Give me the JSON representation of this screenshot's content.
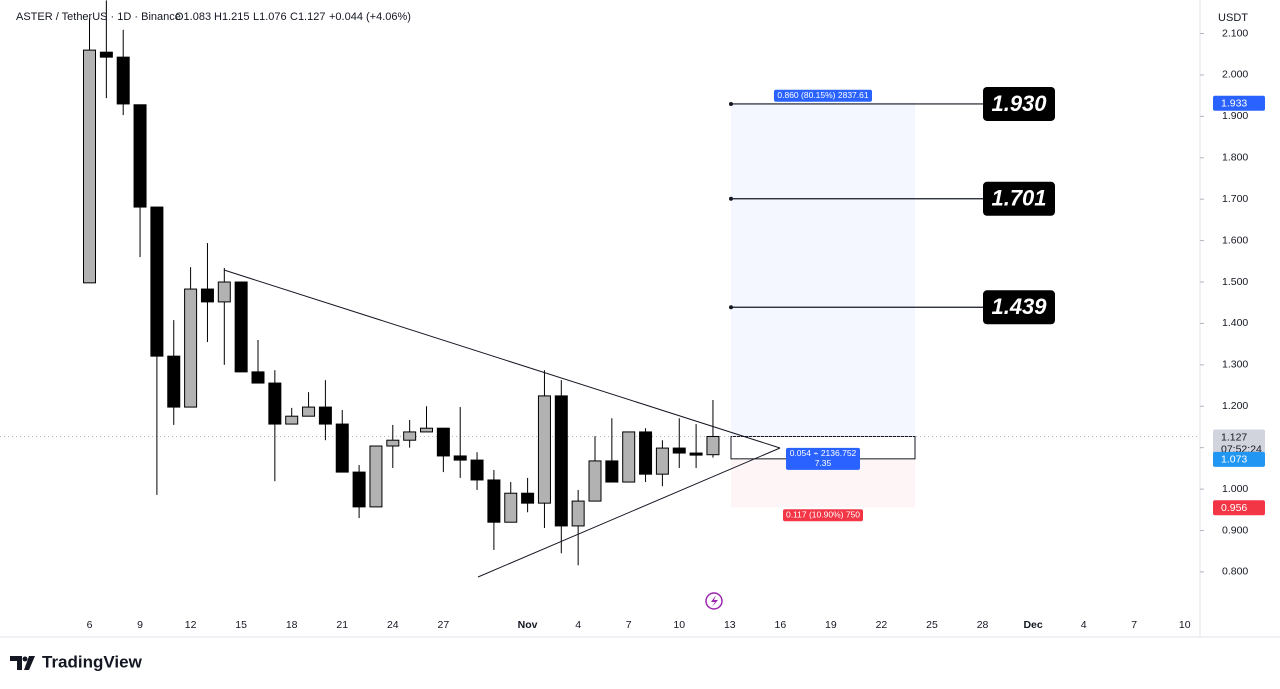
{
  "chart_data": {
    "type": "candlestick",
    "header": {
      "symbol": "ASTER / TetherUS · 1D · Binance",
      "open": "O1.083",
      "high": "H1.215",
      "low": "L1.076",
      "close": "C1.127",
      "change": "+0.044 (+4.06%)"
    },
    "currency": "USDT",
    "brand": "TradingView",
    "categories": [
      "6",
      null,
      null,
      "9",
      null,
      null,
      "12",
      null,
      null,
      "15",
      null,
      null,
      "18",
      null,
      null,
      "21",
      null,
      null,
      "24",
      null,
      null,
      "27",
      null,
      null,
      null,
      null,
      "Nov",
      null,
      null,
      "4",
      null,
      null,
      "7",
      null,
      null,
      "10",
      null,
      null,
      "13",
      null,
      null,
      "16",
      null,
      null,
      "19",
      null,
      null,
      "22",
      null,
      null,
      "25",
      null,
      null,
      "28",
      null,
      null,
      "Dec",
      null,
      null,
      "4",
      null,
      null,
      "7",
      null,
      null,
      "10"
    ],
    "open": [
      1.498,
      2.055,
      2.043,
      1.928,
      1.681,
      1.321,
      1.198,
      1.483,
      1.452,
      1.5,
      1.283,
      1.256,
      1.157,
      1.176,
      1.198,
      1.157,
      1.041,
      0.957,
      1.104,
      1.118,
      1.138,
      1.147,
      1.08,
      1.07,
      1.022,
      0.92,
      0.99,
      0.966,
      1.225,
      0.911,
      0.971,
      1.068,
      1.017,
      1.138,
      1.036,
      1.099,
      1.087,
      1.083,
      null,
      null,
      null,
      null,
      null,
      null,
      null,
      null,
      null,
      null,
      null,
      null,
      null,
      null,
      null,
      null,
      null,
      null,
      null,
      null,
      null,
      null,
      null,
      null,
      null,
      null,
      null,
      null
    ],
    "close": [
      2.06,
      2.043,
      1.93,
      1.681,
      1.321,
      1.198,
      1.483,
      1.452,
      1.5,
      1.283,
      1.256,
      1.157,
      1.176,
      1.198,
      1.157,
      1.041,
      0.957,
      1.104,
      1.118,
      1.138,
      1.147,
      1.08,
      1.07,
      1.022,
      0.92,
      0.99,
      0.966,
      1.225,
      0.911,
      0.971,
      1.068,
      1.017,
      1.138,
      1.036,
      1.099,
      1.087,
      1.082,
      1.127,
      null,
      null,
      null,
      null,
      null,
      null,
      null,
      null,
      null,
      null,
      null,
      null,
      null,
      null,
      null,
      null,
      null,
      null,
      null,
      null,
      null,
      null,
      null,
      null,
      null,
      null,
      null,
      null
    ],
    "high": [
      2.138,
      2.18,
      2.109,
      1.928,
      1.681,
      1.408,
      1.536,
      1.594,
      1.534,
      1.5,
      1.36,
      1.287,
      1.196,
      1.234,
      1.263,
      1.191,
      1.058,
      1.104,
      1.155,
      1.167,
      1.2,
      1.147,
      1.198,
      1.089,
      1.046,
      1.017,
      1.027,
      1.287,
      1.263,
      0.998,
      1.128,
      1.171,
      1.138,
      1.147,
      1.118,
      1.171,
      1.157,
      1.215,
      null,
      null,
      null,
      null,
      null,
      null,
      null,
      null,
      null,
      null,
      null,
      null,
      null,
      null,
      null,
      null,
      null,
      null,
      null,
      null,
      null,
      null,
      null,
      null,
      null,
      null,
      null,
      null
    ],
    "low": [
      1.498,
      1.944,
      1.903,
      1.56,
      0.986,
      1.155,
      1.198,
      1.355,
      1.3,
      1.283,
      1.256,
      1.019,
      1.157,
      1.176,
      1.118,
      1.041,
      0.93,
      0.957,
      1.051,
      1.1,
      1.138,
      1.041,
      1.027,
      0.998,
      0.853,
      0.92,
      0.944,
      0.906,
      0.845,
      0.816,
      0.971,
      1.017,
      1.017,
      1.017,
      1.007,
      1.051,
      1.051,
      1.076,
      null,
      null,
      null,
      null,
      null,
      null,
      null,
      null,
      null,
      null,
      null,
      null,
      null,
      null,
      null,
      null,
      null,
      null,
      null,
      null,
      null,
      null,
      null,
      null,
      null,
      null,
      null,
      null
    ],
    "up_color": "#b2b2b2",
    "down_color": "#000000",
    "ylim": [
      0.708,
      2.181
    ],
    "yticks": [
      {
        "value": 0.8,
        "label": "0.800"
      },
      {
        "value": 0.9,
        "label": "0.900"
      },
      {
        "value": 1.0,
        "label": "1.000"
      },
      {
        "value": 1.1,
        "label": "1.100"
      },
      {
        "value": 1.2,
        "label": "1.200"
      },
      {
        "value": 1.3,
        "label": "1.300"
      },
      {
        "value": 1.4,
        "label": "1.400"
      },
      {
        "value": 1.5,
        "label": "1.500"
      },
      {
        "value": 1.6,
        "label": "1.600"
      },
      {
        "value": 1.7,
        "label": "1.700"
      },
      {
        "value": 1.8,
        "label": "1.800"
      },
      {
        "value": 1.9,
        "label": "1.900"
      },
      {
        "value": 2.0,
        "label": "2.000"
      },
      {
        "value": 2.1,
        "label": "2.100"
      }
    ],
    "targets": [
      {
        "value": 1.93,
        "label": "1.930"
      },
      {
        "value": 1.701,
        "label": "1.701"
      },
      {
        "value": 1.439,
        "label": "1.439"
      }
    ],
    "price_tags": [
      {
        "value": 1.933,
        "label": "1.933",
        "color": "#2962ff"
      },
      {
        "value": 1.127,
        "label": "1.127",
        "countdown": "07:52:24",
        "color": "#d1d4dc"
      },
      {
        "value": 1.073,
        "label": "1.073",
        "color": "#2196f3"
      },
      {
        "value": 0.956,
        "label": "0.956",
        "color": "#f23645"
      }
    ],
    "position_labels": {
      "target": "0.860 (80.15%) 2837.61",
      "entry": "0.054 ⌁ 2136.752",
      "ratio": "7.35",
      "stop": "0.117 (10.90%) 750"
    }
  }
}
